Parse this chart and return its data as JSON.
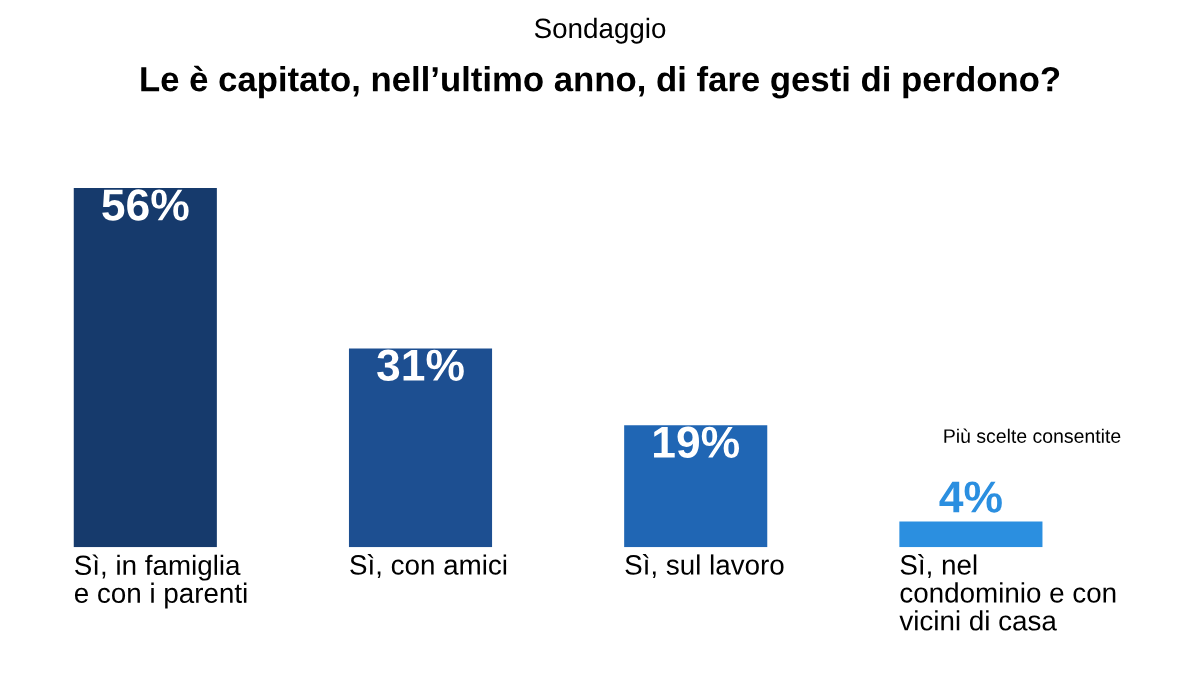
{
  "chart_data": {
    "type": "bar",
    "title": "Le è capitato, nell’ultimo anno, di fare gesti di perdono?",
    "subtitle": "Sondaggio",
    "categories": [
      "Sì, in famiglia\ne con i parenti",
      "Sì, con amici",
      "Sì, sul lavoro",
      "Sì, nel\ncondominio e con\nvicini di casa"
    ],
    "values": [
      56,
      31,
      19,
      4
    ],
    "colors": [
      "#163a6c",
      "#1d4f91",
      "#2066b4",
      "#2b8fe0"
    ],
    "value_labels": [
      "56%",
      "31%",
      "19%",
      "4%"
    ],
    "annotations": [
      "Più scelte consentite"
    ]
  }
}
